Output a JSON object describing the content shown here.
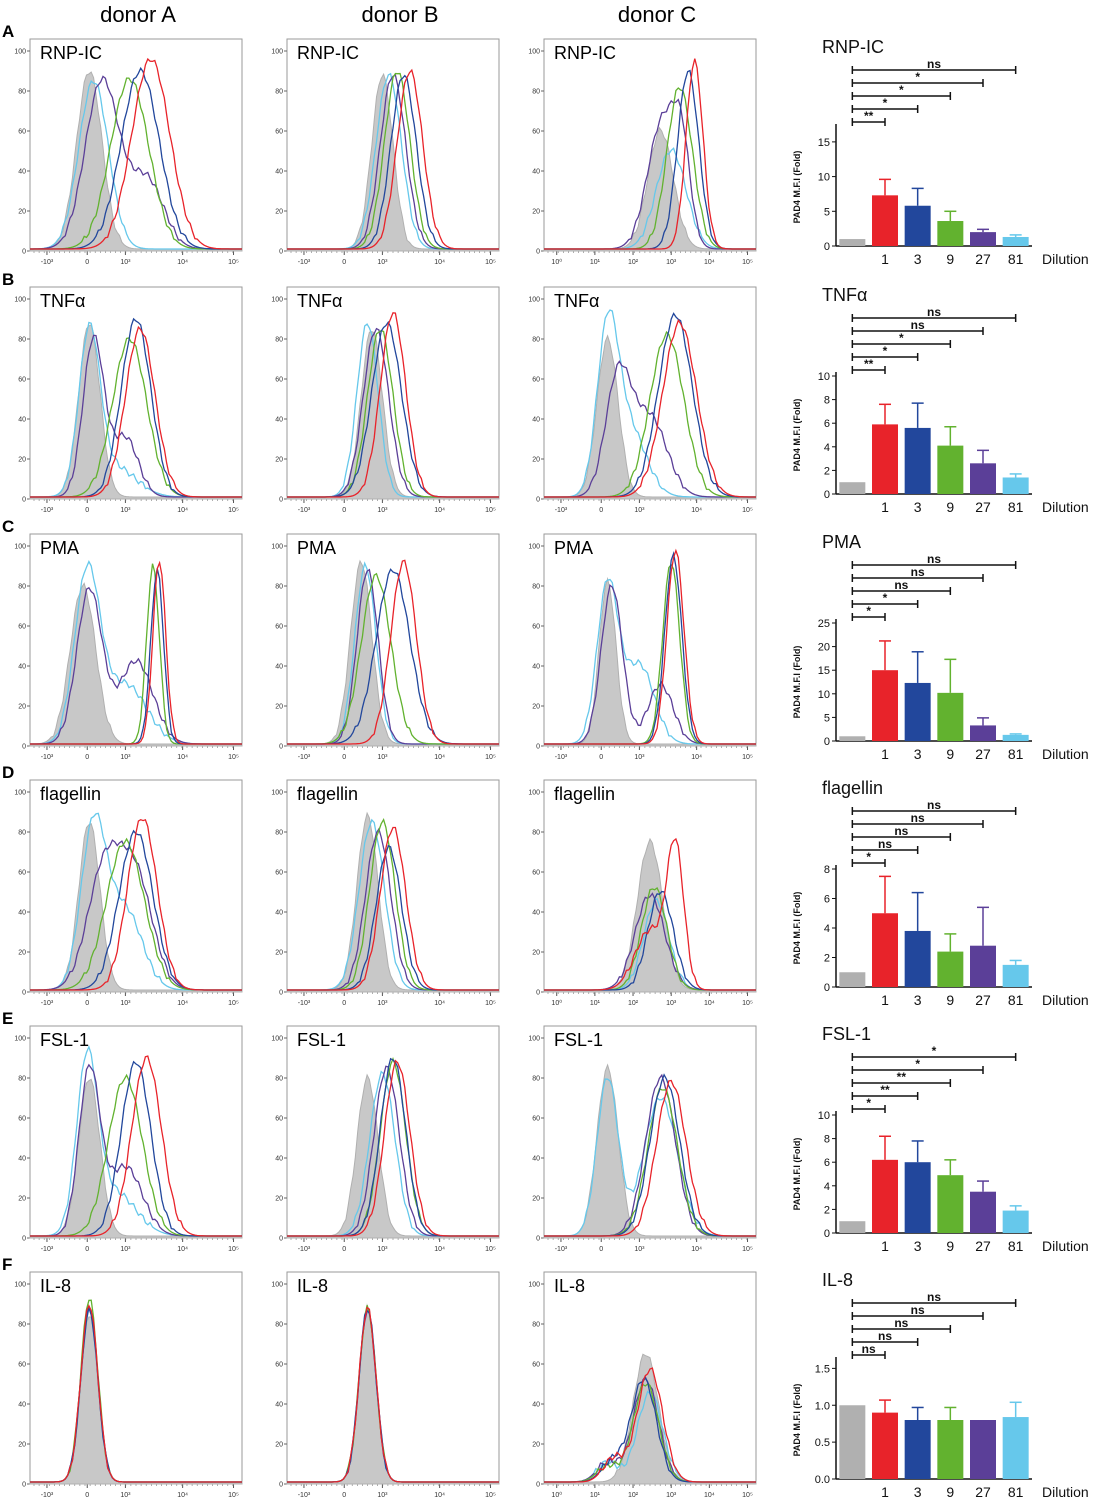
{
  "donors": [
    "donor A",
    "donor B",
    "donor C"
  ],
  "colors": {
    "control": "#b0b0b0",
    "fill": "#c8c8c8",
    "d1": "#e8232a",
    "d3": "#22479c",
    "d9": "#62b22f",
    "d27": "#5b3f98",
    "d81": "#66c8eb",
    "teal": "#2aa3a3"
  },
  "histogram_axis": {
    "y_ticks": [
      "0",
      "20",
      "40",
      "60",
      "80",
      "100"
    ],
    "x_ticks_linlog": [
      "-10³",
      "0",
      "10³",
      "10⁴",
      "10⁵"
    ],
    "x_ticks_log": [
      "10⁰",
      "10¹",
      "10²",
      "10³",
      "10⁴",
      "10⁵"
    ]
  },
  "panels": [
    {
      "letter": "A",
      "stimulus": "RNP-IC"
    },
    {
      "letter": "B",
      "stimulus": "TNFα"
    },
    {
      "letter": "C",
      "stimulus": "PMA"
    },
    {
      "letter": "D",
      "stimulus": "flagellin"
    },
    {
      "letter": "E",
      "stimulus": "FSL-1"
    },
    {
      "letter": "F",
      "stimulus": "IL-8"
    }
  ],
  "chart_data": [
    {
      "type": "bar",
      "title": "RNP-IC",
      "ylabel": "PAD4 M.F.I (Fold)",
      "xlabel": "Dilution",
      "categories": [
        "",
        "1",
        "3",
        "9",
        "27",
        "81"
      ],
      "values": [
        1.0,
        7.3,
        5.8,
        3.6,
        2.0,
        1.3
      ],
      "errors": [
        0,
        2.3,
        2.5,
        1.4,
        0.4,
        0.3
      ],
      "ylim": [
        0,
        17
      ],
      "yticks": [
        0,
        5,
        10,
        15
      ],
      "comparisons": [
        {
          "to": "1",
          "label": "**"
        },
        {
          "to": "3",
          "label": "*"
        },
        {
          "to": "9",
          "label": "*"
        },
        {
          "to": "27",
          "label": "*"
        },
        {
          "to": "81",
          "label": "ns"
        }
      ]
    },
    {
      "type": "bar",
      "title": "TNFα",
      "ylabel": "PAD4 M.F.I (Fold)",
      "xlabel": "Dilution",
      "categories": [
        "",
        "1",
        "3",
        "9",
        "27",
        "81"
      ],
      "values": [
        1.0,
        5.9,
        5.6,
        4.1,
        2.6,
        1.4
      ],
      "errors": [
        0,
        1.7,
        2.1,
        1.6,
        1.1,
        0.3
      ],
      "ylim": [
        0,
        10
      ],
      "yticks": [
        0,
        2,
        4,
        6,
        8,
        10
      ],
      "comparisons": [
        {
          "to": "1",
          "label": "**"
        },
        {
          "to": "3",
          "label": "*"
        },
        {
          "to": "9",
          "label": "*"
        },
        {
          "to": "27",
          "label": "ns"
        },
        {
          "to": "81",
          "label": "ns"
        }
      ]
    },
    {
      "type": "bar",
      "title": "PMA",
      "ylabel": "PAD4 M.F.I (Fold)",
      "xlabel": "Dilution",
      "categories": [
        "",
        "1",
        "3",
        "9",
        "27",
        "81"
      ],
      "values": [
        1.0,
        15.0,
        12.3,
        10.2,
        3.3,
        1.3
      ],
      "errors": [
        0,
        6.2,
        6.6,
        7.1,
        1.6,
        0.2
      ],
      "ylim": [
        0,
        25
      ],
      "yticks": [
        0,
        5,
        10,
        15,
        20,
        25
      ],
      "comparisons": [
        {
          "to": "1",
          "label": "*"
        },
        {
          "to": "3",
          "label": "*"
        },
        {
          "to": "9",
          "label": "ns"
        },
        {
          "to": "27",
          "label": "ns"
        },
        {
          "to": "81",
          "label": "ns"
        }
      ]
    },
    {
      "type": "bar",
      "title": "flagellin",
      "ylabel": "PAD4 M.F.I (Fold)",
      "xlabel": "Dilution",
      "categories": [
        "",
        "1",
        "3",
        "9",
        "27",
        "81"
      ],
      "values": [
        1.0,
        5.0,
        3.8,
        2.4,
        2.8,
        1.5
      ],
      "errors": [
        0,
        2.5,
        2.6,
        1.2,
        2.6,
        0.3
      ],
      "ylim": [
        0,
        8
      ],
      "yticks": [
        0,
        2,
        4,
        6,
        8
      ],
      "comparisons": [
        {
          "to": "1",
          "label": "*"
        },
        {
          "to": "3",
          "label": "ns"
        },
        {
          "to": "9",
          "label": "ns"
        },
        {
          "to": "27",
          "label": "ns"
        },
        {
          "to": "81",
          "label": "ns"
        }
      ]
    },
    {
      "type": "bar",
      "title": "FSL-1",
      "ylabel": "PAD4 M.F.I (Fold)",
      "xlabel": "Dilution",
      "categories": [
        "",
        "1",
        "3",
        "9",
        "27",
        "81"
      ],
      "values": [
        1.0,
        6.2,
        6.0,
        4.9,
        3.5,
        1.9
      ],
      "errors": [
        0,
        2.0,
        1.8,
        1.3,
        0.9,
        0.4
      ],
      "ylim": [
        0,
        10
      ],
      "yticks": [
        0,
        2,
        4,
        6,
        8,
        10
      ],
      "comparisons": [
        {
          "to": "1",
          "label": "*"
        },
        {
          "to": "3",
          "label": "**"
        },
        {
          "to": "9",
          "label": "**"
        },
        {
          "to": "27",
          "label": "*"
        },
        {
          "to": "81",
          "label": "*"
        }
      ]
    },
    {
      "type": "bar",
      "title": "IL-8",
      "ylabel": "PAD4 M.F.I (Fold)",
      "xlabel": "Dilution",
      "categories": [
        "",
        "1",
        "3",
        "9",
        "27",
        "81"
      ],
      "values": [
        1.0,
        0.9,
        0.8,
        0.8,
        0.8,
        0.84
      ],
      "errors": [
        0,
        0.17,
        0.17,
        0.17,
        0,
        0.2
      ],
      "ylim": [
        0,
        1.6
      ],
      "yticks": [
        0.0,
        0.5,
        1.0,
        1.5
      ],
      "comparisons": [
        {
          "to": "1",
          "label": "ns"
        },
        {
          "to": "3",
          "label": "ns"
        },
        {
          "to": "9",
          "label": "ns"
        },
        {
          "to": "27",
          "label": "ns"
        },
        {
          "to": "81",
          "label": "ns"
        }
      ]
    }
  ]
}
